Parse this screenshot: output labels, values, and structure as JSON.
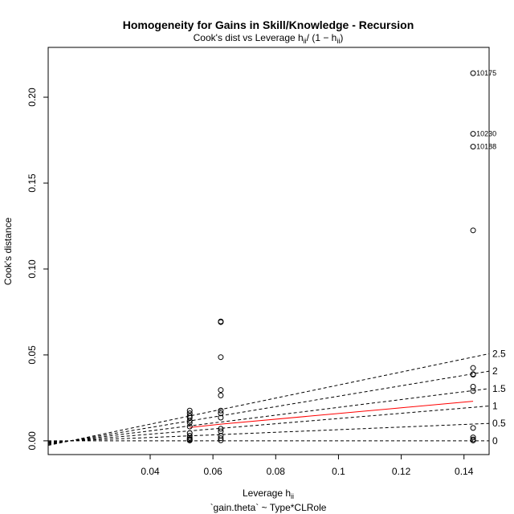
{
  "chart_data": {
    "type": "scatter",
    "title": "Homogeneity for Gains in Skill/Knowledge - Recursion",
    "subtitle": "Cook's dist vs Leverage  h",
    "subtitle_formula": "ii",
    "subtitle_rest": "/ (1 − h",
    "subtitle_rest_sub": "ii",
    "subtitle_close": ")",
    "xlabel": "Leverage  h",
    "xlabel_sub": "ii",
    "ylabel": "Cook's distance",
    "caption": "`gain.theta` ~ Type*CLRole",
    "xlim": [
      0.0075,
      0.148
    ],
    "ylim": [
      -0.008,
      0.229
    ],
    "x_ticks": [
      {
        "value": 0.04,
        "label": "0.04"
      },
      {
        "value": 0.06,
        "label": "0.06"
      },
      {
        "value": 0.08,
        "label": "0.08"
      },
      {
        "value": 0.1,
        "label": "0.1"
      },
      {
        "value": 0.12,
        "label": "0.12"
      },
      {
        "value": 0.14,
        "label": "0.14"
      }
    ],
    "y_ticks": [
      {
        "value": 0.0,
        "label": "0.00"
      },
      {
        "value": 0.05,
        "label": "0.05"
      },
      {
        "value": 0.1,
        "label": "0.10"
      },
      {
        "value": 0.15,
        "label": "0.15"
      },
      {
        "value": 0.2,
        "label": "0.20"
      }
    ],
    "points": [
      {
        "x": 0.0526,
        "y": 0.0176
      },
      {
        "x": 0.0526,
        "y": 0.016
      },
      {
        "x": 0.0526,
        "y": 0.0145
      },
      {
        "x": 0.0526,
        "y": 0.0135
      },
      {
        "x": 0.0526,
        "y": 0.0117
      },
      {
        "x": 0.0526,
        "y": 0.0105
      },
      {
        "x": 0.0526,
        "y": 0.0083
      },
      {
        "x": 0.0526,
        "y": 0.0045
      },
      {
        "x": 0.0526,
        "y": 0.003
      },
      {
        "x": 0.0526,
        "y": 0.0018
      },
      {
        "x": 0.0526,
        "y": 0.001
      },
      {
        "x": 0.0526,
        "y": 0.0005
      },
      {
        "x": 0.0526,
        "y": 0.0002
      },
      {
        "x": 0.0625,
        "y": 0.0695
      },
      {
        "x": 0.0625,
        "y": 0.0691
      },
      {
        "x": 0.0625,
        "y": 0.0487
      },
      {
        "x": 0.0625,
        "y": 0.0296
      },
      {
        "x": 0.0625,
        "y": 0.0264
      },
      {
        "x": 0.0625,
        "y": 0.0176
      },
      {
        "x": 0.0625,
        "y": 0.016
      },
      {
        "x": 0.0625,
        "y": 0.0135
      },
      {
        "x": 0.0625,
        "y": 0.007
      },
      {
        "x": 0.0625,
        "y": 0.0055
      },
      {
        "x": 0.0625,
        "y": 0.003
      },
      {
        "x": 0.0625,
        "y": 0.0015
      },
      {
        "x": 0.0625,
        "y": 0.0003
      },
      {
        "x": 0.1429,
        "y": 0.214
      },
      {
        "x": 0.1429,
        "y": 0.1787
      },
      {
        "x": 0.1429,
        "y": 0.1712
      },
      {
        "x": 0.1429,
        "y": 0.1225
      },
      {
        "x": 0.1429,
        "y": 0.0424
      },
      {
        "x": 0.1429,
        "y": 0.0388
      },
      {
        "x": 0.1429,
        "y": 0.0385
      },
      {
        "x": 0.1429,
        "y": 0.0315
      },
      {
        "x": 0.1429,
        "y": 0.029
      },
      {
        "x": 0.1429,
        "y": 0.0075
      },
      {
        "x": 0.1429,
        "y": 0.002
      },
      {
        "x": 0.1429,
        "y": 0.0008
      },
      {
        "x": 0.1429,
        "y": 0.0002
      }
    ],
    "point_labels": [
      {
        "x": 0.1429,
        "y": 0.214,
        "label": "10175"
      },
      {
        "x": 0.1429,
        "y": 0.1787,
        "label": "10230"
      },
      {
        "x": 0.1429,
        "y": 0.1712,
        "label": "10188"
      }
    ],
    "smoother": {
      "x": [
        0.0526,
        0.0625,
        0.1429
      ],
      "y": [
        0.0078,
        0.0097,
        0.023
      ],
      "color": "#ff0000"
    },
    "contours": [
      {
        "level": 0,
        "label": "0"
      },
      {
        "level": 0.5,
        "label": "0.5"
      },
      {
        "level": 1,
        "label": "1"
      },
      {
        "level": 1.5,
        "label": "1.5"
      },
      {
        "level": 2,
        "label": "2"
      },
      {
        "level": 2.5,
        "label": "2.5"
      }
    ],
    "contour_pivot": {
      "x": 0.0145,
      "y": 0.0
    }
  }
}
